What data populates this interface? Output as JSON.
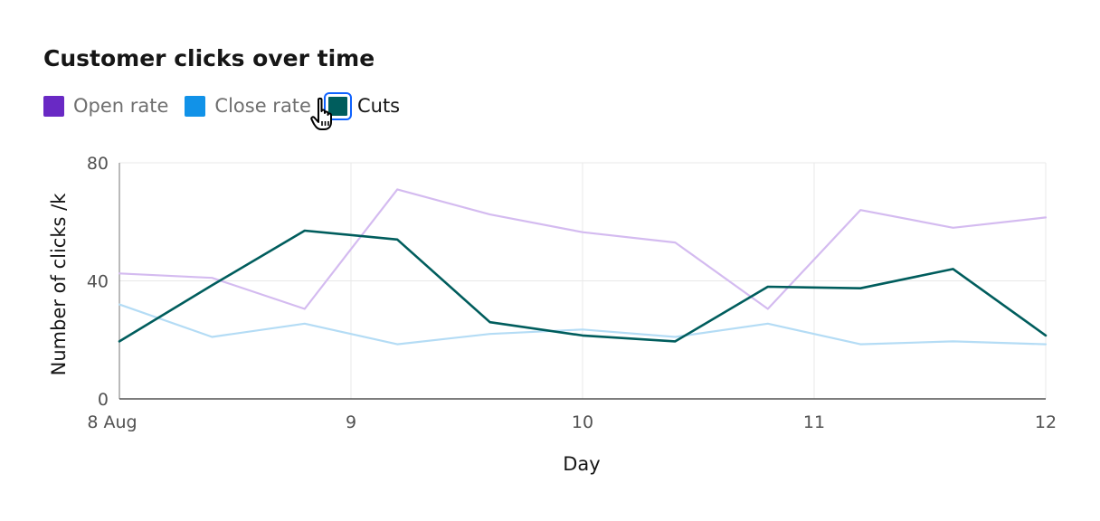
{
  "chart_data": {
    "type": "line",
    "title": "Customer clicks over time",
    "xlabel": "Day",
    "ylabel": "Number of clicks /k",
    "x": [
      "8 Aug 00:00",
      "8 Aug 09:36",
      "8 Aug 19:12",
      "9 Aug 04:48",
      "9 Aug 14:24",
      "10 Aug 00:00",
      "10 Aug 09:36",
      "10 Aug 19:12",
      "11 Aug 04:48",
      "11 Aug 14:24",
      "12 Aug 00:00"
    ],
    "x_numeric": [
      0,
      0.4,
      0.8,
      1.2,
      1.6,
      2.0,
      2.4,
      2.8,
      3.2,
      3.6,
      4.0
    ],
    "xticks": [
      0,
      1,
      2,
      3,
      4
    ],
    "xtick_labels": [
      "8 Aug",
      "9",
      "10",
      "11",
      "12"
    ],
    "xlim": [
      0,
      4
    ],
    "ylim": [
      0,
      80
    ],
    "yticks": [
      0,
      40,
      80
    ],
    "ytick_labels": [
      "0",
      "40",
      "80"
    ],
    "grid": true,
    "legend_position": "top-left",
    "series": [
      {
        "name": "Open rate",
        "color": "#6929c4",
        "dimmed_color": "#d4bbf0",
        "active": false,
        "values": [
          42.5,
          41,
          30.5,
          71,
          62.5,
          56.5,
          53,
          30.5,
          64,
          58,
          61.5
        ]
      },
      {
        "name": "Close rate",
        "color": "#1192e8",
        "dimmed_color": "#b4dcf5",
        "active": false,
        "values": [
          32,
          21,
          25.5,
          18.5,
          22,
          23.5,
          21,
          25.5,
          18.5,
          19.5,
          18.5
        ]
      },
      {
        "name": "Cuts",
        "color": "#005d5d",
        "dimmed_color": "#99bebe",
        "active": true,
        "values": [
          19.5,
          38.5,
          57,
          54,
          26,
          21.5,
          19.5,
          38,
          37.5,
          44,
          21.5
        ]
      }
    ]
  },
  "icons": {
    "cursor": "hand-pointer-icon"
  }
}
